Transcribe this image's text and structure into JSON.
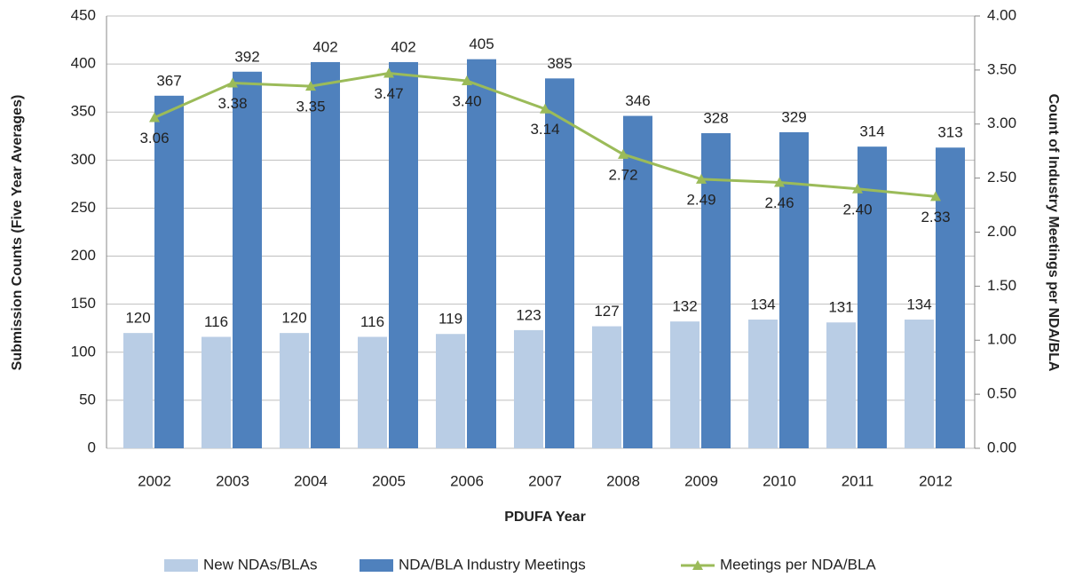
{
  "chart_data": {
    "type": "combo",
    "x_label": "PDUFA Year",
    "y_label": "Submission Counts (Five Year Averages)",
    "y2_label": "Count of Industry Meetings per NDA/BLA",
    "categories": [
      "2002",
      "2003",
      "2004",
      "2005",
      "2006",
      "2007",
      "2008",
      "2009",
      "2010",
      "2011",
      "2012"
    ],
    "series": [
      {
        "name": "New NDAs/BLAs",
        "type": "bar",
        "color": "#b9cde5",
        "values": [
          120,
          116,
          120,
          116,
          119,
          123,
          127,
          132,
          134,
          131,
          134
        ]
      },
      {
        "name": "NDA/BLA Industry Meetings",
        "type": "bar",
        "color": "#4f81bd",
        "values": [
          367,
          392,
          402,
          402,
          405,
          385,
          346,
          328,
          329,
          314,
          313
        ]
      },
      {
        "name": "Meetings per NDA/BLA",
        "type": "line",
        "axis": "y2",
        "color": "#9bbb59",
        "values": [
          3.06,
          3.38,
          3.35,
          3.47,
          3.4,
          3.14,
          2.72,
          2.49,
          2.46,
          2.4,
          2.33
        ],
        "value_labels": [
          "3.06",
          "3.38",
          "3.35",
          "3.47",
          "3.40",
          "3.14",
          "2.72",
          "2.49",
          "2.46",
          "2.40",
          "2.33"
        ]
      }
    ],
    "ylim": [
      0,
      450
    ],
    "yticks": [
      0,
      50,
      100,
      150,
      200,
      250,
      300,
      350,
      400,
      450
    ],
    "y2lim": [
      0,
      4
    ],
    "y2ticks": [
      {
        "value": 0,
        "label": "0.00"
      },
      {
        "value": 0.5,
        "label": "0.50"
      },
      {
        "value": 1,
        "label": "1.00"
      },
      {
        "value": 1.5,
        "label": "1.50"
      },
      {
        "value": 2,
        "label": "2.00"
      },
      {
        "value": 2.5,
        "label": "2.50"
      },
      {
        "value": 3,
        "label": "3.00"
      },
      {
        "value": 3.5,
        "label": "3.50"
      },
      {
        "value": 4,
        "label": "4.00"
      }
    ],
    "grid": true,
    "legend": "bottom"
  }
}
